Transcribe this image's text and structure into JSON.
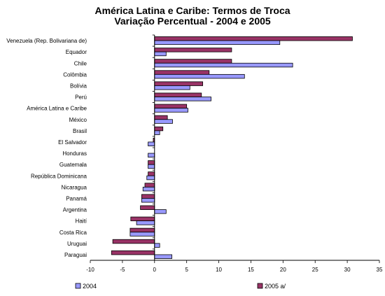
{
  "chart_data": {
    "type": "bar",
    "orientation": "horizontal",
    "title": "América Latina e Caribe: Termos de Troca",
    "subtitle": "Variação Percentual - 2004 e 2005",
    "xlabel": "",
    "ylabel": "",
    "xlim": [
      -10,
      35
    ],
    "xticks": [
      -10,
      -5,
      0,
      5,
      10,
      15,
      20,
      25,
      30,
      35
    ],
    "grid": false,
    "legend_position": "bottom",
    "categories": [
      "Venezuela (Rep. Bolivariana de)",
      "Equador",
      "Chile",
      "Colômbia",
      "Bolívia",
      "Perú",
      "América Latina e Caribe",
      "México",
      "Brasil",
      "El Salvador",
      "Honduras",
      "Guatemala",
      "República Dominicana",
      "Nicaragua",
      "Panamá",
      "Argentina",
      "Haití",
      "Costa Rica",
      "Uruguai",
      "Paraguai"
    ],
    "series": [
      {
        "name": "2004",
        "color": "#9999ff",
        "values": [
          19.5,
          1.8,
          21.5,
          14.0,
          5.5,
          8.8,
          5.2,
          2.8,
          0.8,
          -1.0,
          -1.0,
          -1.0,
          -1.2,
          -1.8,
          -2.0,
          1.8,
          -2.8,
          -3.8,
          0.8,
          2.7
        ]
      },
      {
        "name": "2005 a/",
        "color": "#993366",
        "values": [
          30.8,
          12.0,
          12.0,
          8.5,
          7.5,
          7.3,
          5.0,
          2.0,
          1.3,
          -0.2,
          0,
          -1.0,
          -1.0,
          -1.5,
          -2.0,
          -2.2,
          -3.7,
          -3.8,
          -6.5,
          -6.7
        ]
      }
    ]
  }
}
